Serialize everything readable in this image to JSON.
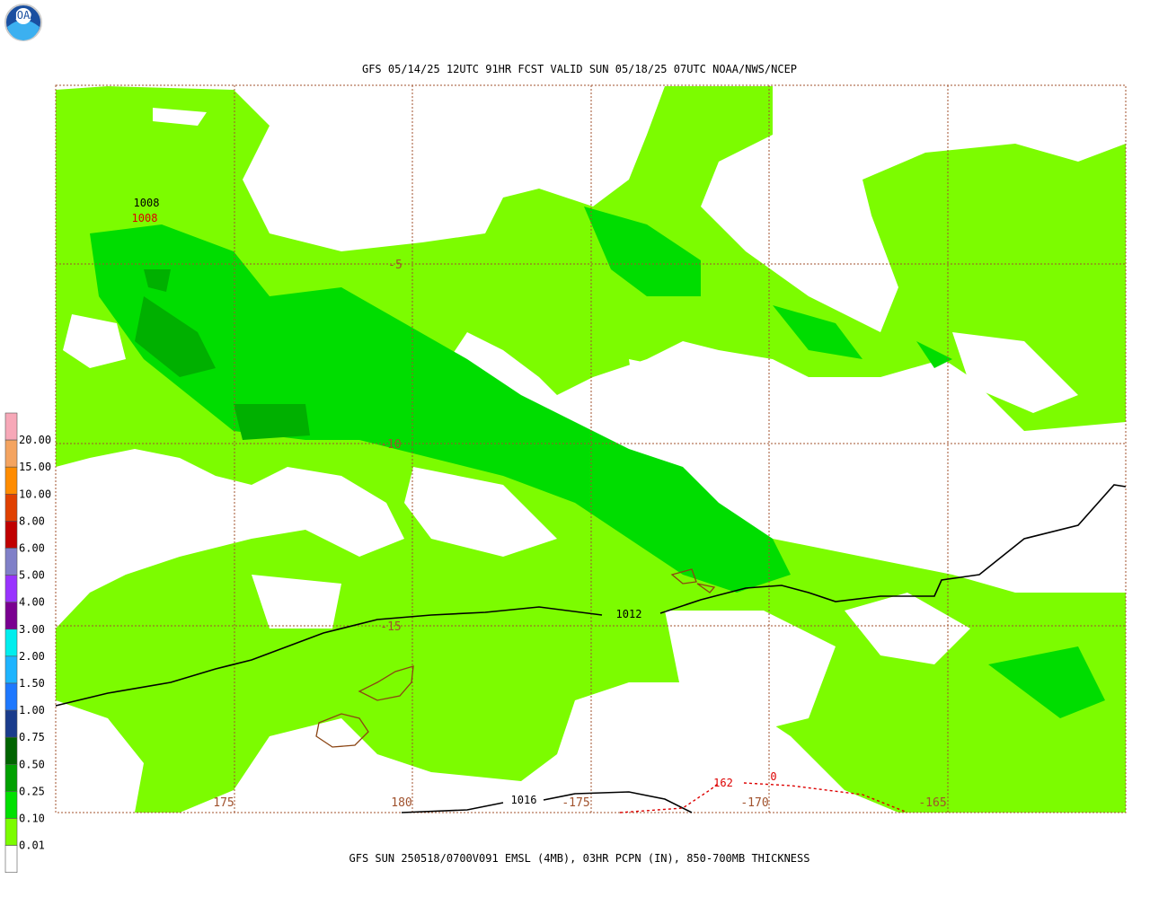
{
  "logo": "NOAA",
  "header": {
    "title": "GFS 05/14/25 12UTC 91HR FCST VALID SUN 05/18/25 07UTC NOAA/NWS/NCEP"
  },
  "map": {
    "lat_labels": [
      "-5",
      "-10",
      "-15"
    ],
    "lon_labels": [
      "175",
      "180",
      "-175",
      "-170",
      "-165"
    ],
    "isobar_labels": [
      "1008",
      "1012",
      "1016"
    ],
    "thickness_labels": [
      "1008",
      "162",
      "0"
    ]
  },
  "legend": {
    "labels": [
      "20.00",
      "15.00",
      "10.00",
      "8.00",
      "6.00",
      "5.00",
      "4.00",
      "3.00",
      "2.00",
      "1.50",
      "1.00",
      "0.75",
      "0.50",
      "0.25",
      "0.10",
      "0.01"
    ],
    "colors": [
      "#f7a8b8",
      "#f4a460",
      "#ff8c00",
      "#e04000",
      "#c00000",
      "#8080c8",
      "#9933ff",
      "#7a0090",
      "#00eeee",
      "#1eb4ff",
      "#1e78ff",
      "#1a3c8c",
      "#006400",
      "#00a000",
      "#00e000",
      "#7cfc00",
      "#ffffff"
    ]
  },
  "footer": {
    "caption": "GFS SUN 250518/0700V091 EMSL (4MB), 03HR PCPN (IN), 850-700MB THICKNESS"
  }
}
